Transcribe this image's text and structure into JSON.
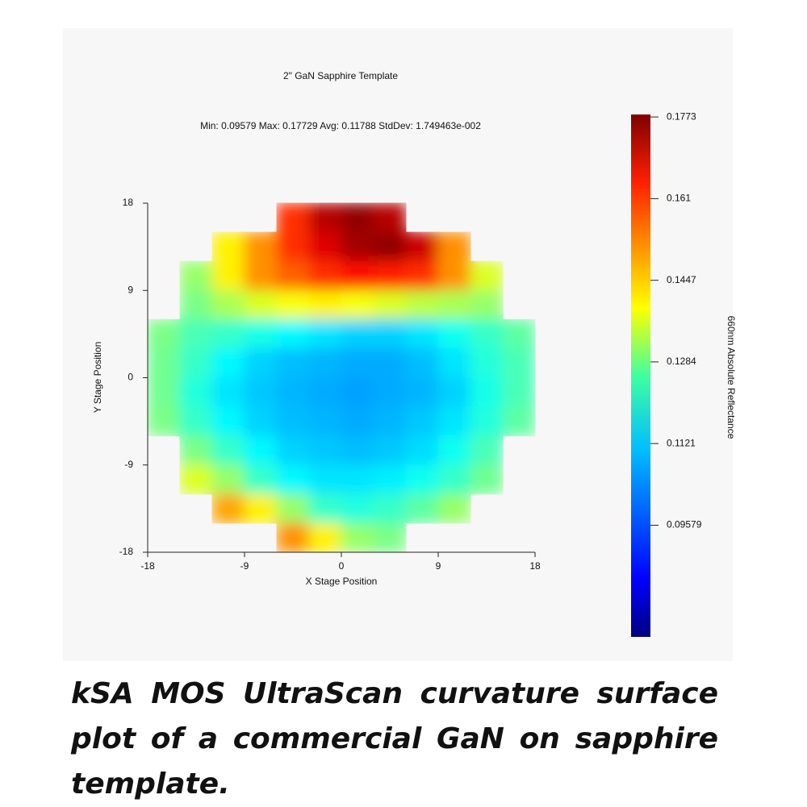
{
  "chart_data": {
    "type": "heatmap",
    "title": "2\" GaN Sapphire Template",
    "subtitle": "Min: 0.09579 Max: 0.17729 Avg: 0.11788 StdDev: 1.749463e-002",
    "x_label": "X Stage Position",
    "y_label": "Y Stage Position",
    "colorbar_label": "660nm Absolute Reflectance",
    "colormap": "jet",
    "x": [
      -16.5,
      -13.5,
      -10.5,
      -7.5,
      -4.5,
      -1.5,
      1.5,
      4.5,
      7.5,
      10.5,
      13.5,
      16.5
    ],
    "y": [
      16.5,
      13.5,
      10.5,
      7.5,
      4.5,
      1.5,
      -1.5,
      -4.5,
      -7.5,
      -10.5,
      -13.5,
      -16.5
    ],
    "z": [
      [
        null,
        null,
        null,
        null,
        0.16,
        0.172,
        0.176,
        0.172,
        null,
        null,
        null,
        null
      ],
      [
        null,
        null,
        0.14,
        0.15,
        0.16,
        0.168,
        0.174,
        0.176,
        0.17,
        0.15,
        null,
        null
      ],
      [
        null,
        0.128,
        0.14,
        0.15,
        0.155,
        0.16,
        0.163,
        0.162,
        0.16,
        0.15,
        0.135,
        null
      ],
      [
        null,
        0.125,
        0.13,
        0.135,
        0.138,
        0.14,
        0.138,
        0.135,
        0.132,
        0.13,
        0.128,
        null
      ],
      [
        0.125,
        0.12,
        0.118,
        0.115,
        0.112,
        0.11,
        0.108,
        0.108,
        0.11,
        0.114,
        0.118,
        0.122
      ],
      [
        0.124,
        0.118,
        0.112,
        0.108,
        0.106,
        0.105,
        0.104,
        0.104,
        0.106,
        0.11,
        0.116,
        0.12
      ],
      [
        0.124,
        0.116,
        0.11,
        0.107,
        0.105,
        0.104,
        0.103,
        0.104,
        0.105,
        0.108,
        0.115,
        0.12
      ],
      [
        0.125,
        0.118,
        0.112,
        0.108,
        0.106,
        0.105,
        0.104,
        0.105,
        0.107,
        0.11,
        0.116,
        0.122
      ],
      [
        null,
        0.125,
        0.118,
        0.112,
        0.108,
        0.107,
        0.106,
        0.107,
        0.109,
        0.114,
        0.12,
        null
      ],
      [
        null,
        0.135,
        0.128,
        0.118,
        0.112,
        0.11,
        0.11,
        0.111,
        0.114,
        0.118,
        0.124,
        null
      ],
      [
        null,
        null,
        0.148,
        0.14,
        0.128,
        0.118,
        0.116,
        0.118,
        0.122,
        0.128,
        null,
        null
      ],
      [
        null,
        null,
        null,
        null,
        0.15,
        0.14,
        0.128,
        0.125,
        null,
        null,
        null,
        null
      ]
    ],
    "xlim": [
      -18,
      18
    ],
    "xticks": [
      -18,
      -9,
      0,
      9,
      18
    ],
    "ylim": [
      -18,
      18
    ],
    "yticks": [
      18,
      9,
      0,
      -9,
      -18
    ],
    "clim": [
      0.0735,
      0.1778
    ],
    "cticks": [
      0.1773,
      0.161,
      0.1447,
      0.1284,
      0.1121,
      0.09579
    ]
  },
  "caption": "kSA MOS UltraScan curvature surface plot of a commercial GaN on sapphire template."
}
